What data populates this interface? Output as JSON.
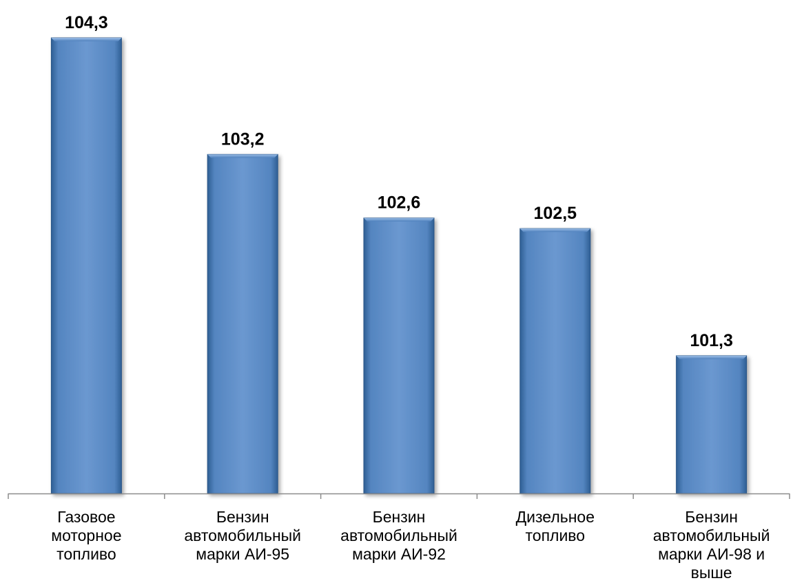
{
  "chart_data": {
    "type": "bar",
    "categories": [
      [
        "Газовое",
        "моторное",
        "топливо"
      ],
      [
        "Бензин",
        "автомобильный",
        "марки АИ-95"
      ],
      [
        "Бензин",
        "автомобильный",
        "марки АИ-92"
      ],
      [
        "Дизельное",
        "топливо"
      ],
      [
        "Бензин",
        "автомобильный",
        "марки АИ-98 и",
        "выше"
      ]
    ],
    "values": [
      104.3,
      103.2,
      102.6,
      102.5,
      101.3
    ],
    "value_labels": [
      "104,3",
      "103,2",
      "102,6",
      "102,5",
      "101,3"
    ],
    "ylim": [
      100.0,
      104.3
    ],
    "grid": false,
    "legend": "none",
    "colors": {
      "bar_fill": "#4f81bd",
      "bar_dark": "#2f5f94",
      "bar_light": "#7ea6d8",
      "axis": "#8c8c8c",
      "text": "#000000"
    }
  }
}
